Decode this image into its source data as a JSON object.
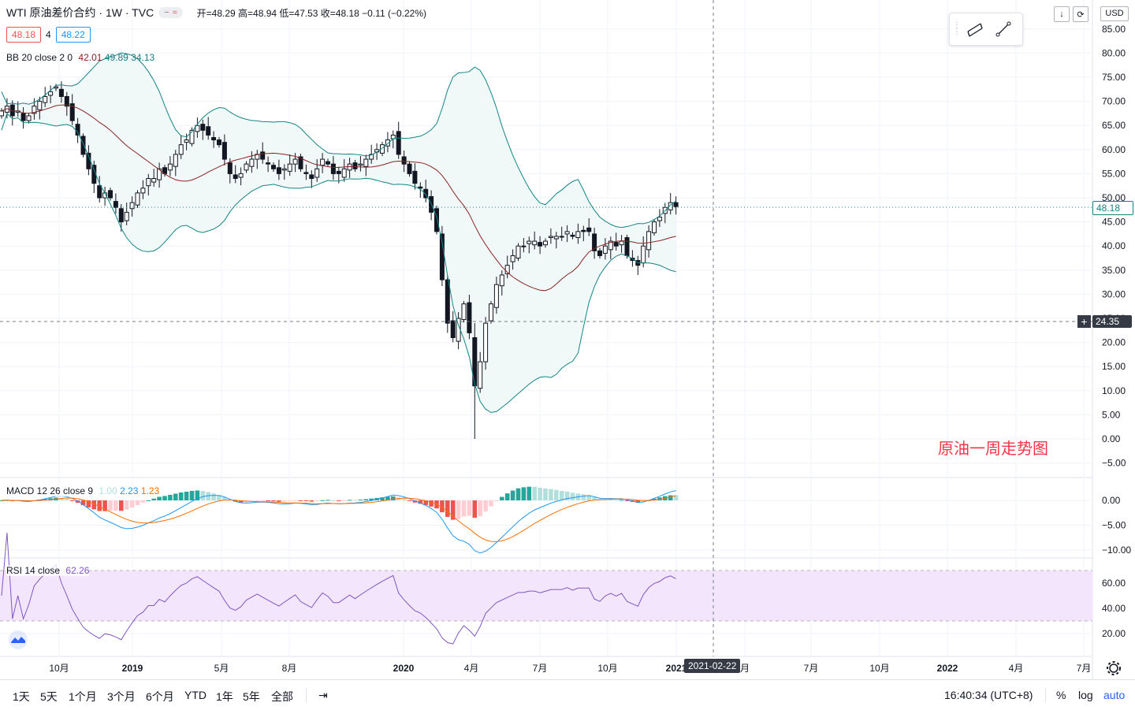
{
  "header": {
    "symbol": "WTI 原油差价合约 · 1W · TVC",
    "ohlc": "开=48.29 高=48.94 低=47.53 收=48.18 −0.11 (−0.22%)",
    "bid": "48.18",
    "spread": "4",
    "ask": "48.22"
  },
  "indicators": {
    "bb_label": "BB 20 close 2 0",
    "bb_mid": "42.01",
    "bb_upper": "49.89",
    "bb_lower": "34.13",
    "macd_label": "MACD 12 26 close 9",
    "macd_hist": "1.00",
    "macd_line": "2.23",
    "macd_signal": "1.23",
    "rsi_label": "RSI 14 close",
    "rsi_value": "62.26"
  },
  "annotation": "原油一周走势图",
  "price_axis": {
    "currency": "USD",
    "ticks": [
      "85.00",
      "80.00",
      "75.00",
      "70.00",
      "65.00",
      "60.00",
      "55.00",
      "50.00",
      "45.00",
      "40.00",
      "35.00",
      "30.00",
      "25.00",
      "20.00",
      "15.00",
      "10.00",
      "5.00",
      "0.00",
      "−5.00"
    ],
    "last_price": "48.18",
    "crosshair_price": "24.35",
    "macd_ticks": [
      "0.00",
      "−5.00",
      "−10.00"
    ],
    "rsi_ticks": [
      "60.00",
      "40.00",
      "20.00"
    ]
  },
  "time_axis": {
    "ticks": [
      "10月",
      "2019",
      "5月",
      "8月",
      "2020",
      "4月",
      "7月",
      "10月",
      "2021",
      "月",
      "7月",
      "10月",
      "2022",
      "4月",
      "7月"
    ],
    "crosshair_date": "2021-02-22"
  },
  "bottom_bar": {
    "ranges": [
      "1天",
      "5天",
      "1个月",
      "3个月",
      "6个月",
      "YTD",
      "1年",
      "5年",
      "全部"
    ],
    "clock": "16:40:34 (UTC+8)",
    "pct": "%",
    "log": "log",
    "auto": "auto"
  },
  "colors": {
    "up": "#ffffff",
    "down": "#131722",
    "bb_basis": "#872323",
    "bb_band": "#138484",
    "bb_fill": "#f1f8f8",
    "macd_line": "#2196f3",
    "signal_line": "#ff6d00",
    "hist_pos_strong": "#26a69a",
    "hist_pos_weak": "#b2dfdb",
    "hist_neg_strong": "#ef5350",
    "hist_neg_weak": "#ffcdd2",
    "rsi_line": "#7e57c2",
    "rsi_band": "#f3e5fc",
    "annotation": "#f23645"
  },
  "chart_data": {
    "type": "candlestick",
    "ylim": [
      -7,
      88
    ],
    "candles_close": [
      68,
      69,
      67,
      68,
      66,
      67,
      69,
      70,
      71,
      72,
      73,
      71,
      69,
      66,
      63,
      59,
      56,
      53,
      50,
      51,
      50,
      48,
      45,
      47,
      49,
      51,
      52,
      54,
      54,
      56,
      55,
      57,
      59,
      61,
      62,
      64,
      65,
      64,
      63,
      62,
      61,
      58,
      55,
      54,
      55,
      57,
      58,
      59,
      58,
      57,
      56,
      55,
      56,
      57,
      58,
      56,
      55,
      54,
      56,
      58,
      57,
      55,
      55,
      56,
      57,
      56,
      57,
      58,
      59,
      60,
      61,
      62,
      63,
      59,
      57,
      55,
      53,
      52,
      50,
      47,
      43,
      33,
      24,
      21,
      25,
      28,
      22,
      11,
      16,
      24,
      28,
      32,
      34,
      36,
      38,
      40,
      40,
      41,
      41,
      40,
      41,
      42,
      42,
      42,
      43,
      42,
      43,
      43,
      43,
      39,
      38,
      40,
      41,
      40,
      41,
      38,
      37,
      36,
      40,
      43,
      45,
      46,
      48,
      49,
      48.18
    ],
    "bb": {
      "period": 20,
      "mult": 2,
      "upper_last": 49.89,
      "basis_last": 42.01,
      "lower_last": 34.13
    },
    "macd": {
      "last_line": 2.23,
      "last_signal": 1.23,
      "last_hist": 1.0
    },
    "rsi": {
      "period": 14,
      "last": 62.26,
      "bands": [
        70,
        30
      ]
    }
  }
}
